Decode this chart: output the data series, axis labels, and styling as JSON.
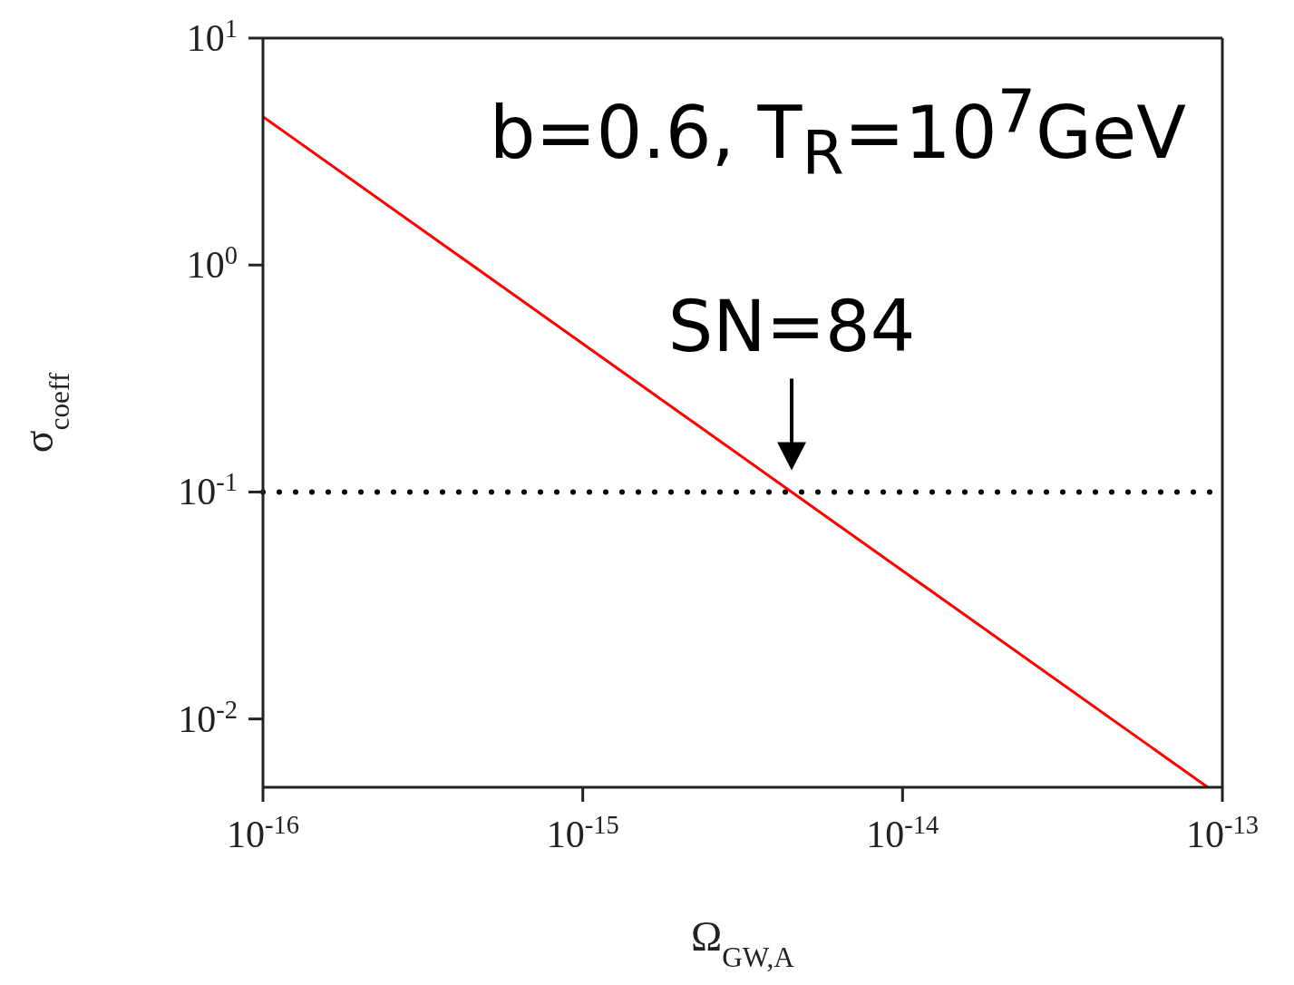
{
  "chart_data": {
    "type": "line",
    "xlabel": "Ω$_{GW,A}$",
    "ylabel": "σ$_{coeff}$",
    "x": [
      1e-16,
      4.5e-15,
      9e-14
    ],
    "series": [
      {
        "color": "#ff0000",
        "values": [
          4.5,
          0.1,
          0.005
        ]
      }
    ],
    "log": "xy",
    "xlim": [
      1e-16,
      1e-13
    ],
    "ylim": [
      0.005,
      10
    ],
    "xticks": [
      {
        "value": 1e-16,
        "label": "10$^{-16}$"
      },
      {
        "value": 1e-15,
        "label": "10$^{-15}$"
      },
      {
        "value": 1e-14,
        "label": "10$^{-14}$"
      },
      {
        "value": 1e-13,
        "label": "10$^{-13}$"
      }
    ],
    "yticks": [
      {
        "value": 0.01,
        "label": "10$^{-2}$"
      },
      {
        "value": 0.1,
        "label": "10$^{-1}$"
      },
      {
        "value": 1,
        "label": "10$^{0}$"
      },
      {
        "value": 10,
        "label": "10$^{1}$"
      }
    ],
    "ref_lines": [
      {
        "axis": "y",
        "value": 0.1,
        "color": "#000000",
        "line_style": "dotted"
      }
    ],
    "annotations": [
      "b=0.6, T$_{R}$=10$^{7}$GeV",
      {
        "text": "SN=84",
        "x": 4.5e-15,
        "y": 0.1
      }
    ],
    "marker": "none",
    "line_style": "solid"
  }
}
